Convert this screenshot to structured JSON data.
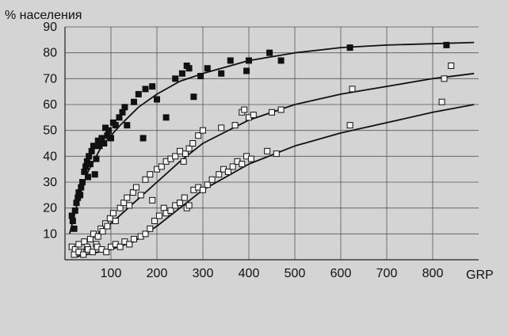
{
  "chart_data": {
    "type": "scatter",
    "ylabel": "% населения",
    "xlabel": "GRP",
    "xlim": [
      0,
      900
    ],
    "ylim": [
      0,
      90
    ],
    "xticks": [
      100,
      200,
      300,
      400,
      500,
      600,
      700,
      800
    ],
    "yticks": [
      10,
      20,
      30,
      40,
      50,
      60,
      70,
      80,
      90
    ],
    "grid": true,
    "legend": "none",
    "series": [
      {
        "marker": "filled-square",
        "points": [
          [
            15,
            17
          ],
          [
            17,
            15
          ],
          [
            20,
            12
          ],
          [
            22,
            19
          ],
          [
            25,
            22
          ],
          [
            28,
            24
          ],
          [
            30,
            26
          ],
          [
            33,
            25
          ],
          [
            35,
            28
          ],
          [
            38,
            30
          ],
          [
            42,
            34
          ],
          [
            45,
            36
          ],
          [
            48,
            38
          ],
          [
            50,
            32
          ],
          [
            52,
            40
          ],
          [
            55,
            37
          ],
          [
            58,
            42
          ],
          [
            62,
            44
          ],
          [
            65,
            33
          ],
          [
            68,
            39
          ],
          [
            72,
            46
          ],
          [
            75,
            44
          ],
          [
            80,
            47
          ],
          [
            85,
            45
          ],
          [
            88,
            51
          ],
          [
            92,
            48
          ],
          [
            95,
            50
          ],
          [
            100,
            47
          ],
          [
            105,
            53
          ],
          [
            110,
            52
          ],
          [
            118,
            55
          ],
          [
            125,
            57
          ],
          [
            130,
            59
          ],
          [
            135,
            52
          ],
          [
            150,
            61
          ],
          [
            160,
            64
          ],
          [
            170,
            47
          ],
          [
            175,
            66
          ],
          [
            190,
            67
          ],
          [
            200,
            62
          ],
          [
            220,
            55
          ],
          [
            240,
            70
          ],
          [
            255,
            72
          ],
          [
            265,
            75
          ],
          [
            270,
            74
          ],
          [
            280,
            63
          ],
          [
            295,
            71
          ],
          [
            310,
            74
          ],
          [
            340,
            72
          ],
          [
            360,
            77
          ],
          [
            395,
            73
          ],
          [
            400,
            77
          ],
          [
            445,
            80
          ],
          [
            470,
            77
          ],
          [
            620,
            82
          ],
          [
            830,
            83
          ]
        ],
        "fit": [
          [
            10,
            10
          ],
          [
            30,
            24
          ],
          [
            50,
            34
          ],
          [
            80,
            44
          ],
          [
            120,
            52
          ],
          [
            160,
            59
          ],
          [
            200,
            64
          ],
          [
            250,
            69
          ],
          [
            300,
            72
          ],
          [
            400,
            77
          ],
          [
            500,
            80
          ],
          [
            600,
            82
          ],
          [
            700,
            83
          ],
          [
            800,
            83.5
          ],
          [
            890,
            84
          ]
        ]
      },
      {
        "marker": "open-square",
        "points": [
          [
            15,
            5
          ],
          [
            22,
            4
          ],
          [
            30,
            6
          ],
          [
            35,
            3
          ],
          [
            42,
            7
          ],
          [
            48,
            5
          ],
          [
            55,
            8
          ],
          [
            62,
            10
          ],
          [
            68,
            6
          ],
          [
            72,
            9
          ],
          [
            78,
            12
          ],
          [
            82,
            11
          ],
          [
            88,
            14
          ],
          [
            92,
            13
          ],
          [
            98,
            16
          ],
          [
            105,
            18
          ],
          [
            110,
            15
          ],
          [
            120,
            20
          ],
          [
            128,
            22
          ],
          [
            135,
            24
          ],
          [
            140,
            21
          ],
          [
            148,
            26
          ],
          [
            155,
            28
          ],
          [
            165,
            25
          ],
          [
            175,
            31
          ],
          [
            185,
            33
          ],
          [
            190,
            23
          ],
          [
            200,
            35
          ],
          [
            210,
            36
          ],
          [
            220,
            38
          ],
          [
            230,
            39
          ],
          [
            240,
            40
          ],
          [
            250,
            42
          ],
          [
            258,
            38
          ],
          [
            262,
            41
          ],
          [
            270,
            43
          ],
          [
            278,
            45
          ],
          [
            290,
            48
          ],
          [
            300,
            50
          ],
          [
            340,
            51
          ],
          [
            370,
            52
          ],
          [
            385,
            57
          ],
          [
            390,
            58
          ],
          [
            400,
            55
          ],
          [
            410,
            56
          ],
          [
            450,
            57
          ],
          [
            470,
            58
          ],
          [
            620,
            52
          ],
          [
            625,
            66
          ],
          [
            820,
            61
          ],
          [
            825,
            70
          ],
          [
            840,
            75
          ]
        ],
        "fit": [
          [
            15,
            4
          ],
          [
            50,
            7
          ],
          [
            100,
            14
          ],
          [
            150,
            22
          ],
          [
            200,
            30
          ],
          [
            250,
            38
          ],
          [
            300,
            45
          ],
          [
            400,
            54
          ],
          [
            500,
            60
          ],
          [
            600,
            64
          ],
          [
            700,
            67
          ],
          [
            800,
            70
          ],
          [
            890,
            72
          ]
        ]
      },
      {
        "marker": "open-square",
        "points": [
          [
            20,
            2
          ],
          [
            30,
            3
          ],
          [
            40,
            2
          ],
          [
            50,
            4
          ],
          [
            60,
            3
          ],
          [
            70,
            5
          ],
          [
            80,
            4
          ],
          [
            90,
            3
          ],
          [
            100,
            5
          ],
          [
            110,
            6
          ],
          [
            120,
            5
          ],
          [
            130,
            7
          ],
          [
            140,
            6
          ],
          [
            150,
            8
          ],
          [
            165,
            9
          ],
          [
            175,
            10
          ],
          [
            185,
            12
          ],
          [
            195,
            15
          ],
          [
            205,
            17
          ],
          [
            215,
            20
          ],
          [
            220,
            18
          ],
          [
            230,
            19
          ],
          [
            240,
            21
          ],
          [
            250,
            22
          ],
          [
            260,
            24
          ],
          [
            265,
            20
          ],
          [
            270,
            21
          ],
          [
            280,
            27
          ],
          [
            290,
            28
          ],
          [
            300,
            27
          ],
          [
            310,
            29
          ],
          [
            320,
            31
          ],
          [
            335,
            33
          ],
          [
            345,
            35
          ],
          [
            355,
            34
          ],
          [
            365,
            36
          ],
          [
            375,
            38
          ],
          [
            385,
            37
          ],
          [
            395,
            40
          ],
          [
            405,
            39
          ],
          [
            440,
            42
          ],
          [
            460,
            41
          ]
        ],
        "fit": [
          [
            20,
            1
          ],
          [
            100,
            4
          ],
          [
            150,
            7
          ],
          [
            200,
            13
          ],
          [
            250,
            20
          ],
          [
            300,
            27
          ],
          [
            400,
            37
          ],
          [
            500,
            44
          ],
          [
            600,
            49
          ],
          [
            700,
            53
          ],
          [
            800,
            57
          ],
          [
            890,
            60
          ]
        ]
      }
    ]
  }
}
